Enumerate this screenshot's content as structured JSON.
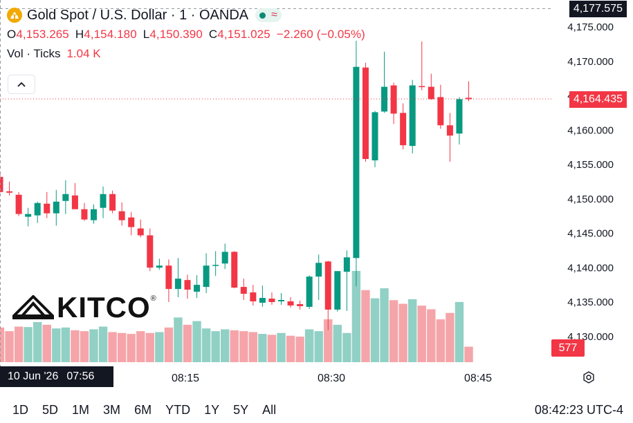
{
  "header": {
    "title": "Gold Spot / U.S. Dollar · 1 · OANDA",
    "icon": "gold-coin-icon",
    "status_icons": [
      "market-open-dot-icon",
      "realtime-wave-icon"
    ]
  },
  "ohlc": {
    "o_label": "O",
    "o_value": "4,153.265",
    "h_label": "H",
    "h_value": "4,154.180",
    "l_label": "L",
    "l_value": "4,150.390",
    "c_label": "C",
    "c_value": "4,151.025",
    "change": "−2.260 (−0.05%)"
  },
  "volume": {
    "label": "Vol · Ticks",
    "value": "1.04 K"
  },
  "watermark": {
    "logo_text": "KITCO",
    "mark": "®"
  },
  "price_scale": {
    "top_label": "4,177.575",
    "last_label": "4,164.435",
    "volume_label": "577"
  },
  "time_cursor": {
    "date": "10 Jun '26",
    "time": "07:56"
  },
  "ranges": [
    "1D",
    "5D",
    "1M",
    "3M",
    "6M",
    "YTD",
    "1Y",
    "5Y",
    "All"
  ],
  "clock": "08:42:23 UTC-4",
  "colors": {
    "up": "#089981",
    "down": "#f23645",
    "up_vol": "#91d0c5",
    "down_vol": "#f5a5a9",
    "gold": "#f2a900"
  },
  "chart_data": {
    "type": "candlestick",
    "symbol": "Gold Spot / U.S. Dollar",
    "interval": "1",
    "y_ticks": [
      4130,
      4135,
      4140,
      4145,
      4150,
      4155,
      4160,
      4165,
      4170,
      4175
    ],
    "y_tick_labels": [
      "4,130.000",
      "4,135.000",
      "4,140.000",
      "4,145.000",
      "4,150.000",
      "4,155.000",
      "4,160.000",
      "4,165.000",
      "4,170.000",
      "4,175.000"
    ],
    "x_tick_labels": [
      "08:15",
      "08:30",
      "08:45"
    ],
    "ylim": [
      4125.5,
      4178.5
    ],
    "last_price": 4164.435,
    "candles": [
      {
        "o": 4153.1,
        "h": 4153.6,
        "l": 4150.8,
        "c": 4150.9,
        "v": 380
      },
      {
        "o": 4151.0,
        "h": 4152.4,
        "l": 4150.4,
        "c": 4150.8,
        "v": 340
      },
      {
        "o": 4150.5,
        "h": 4150.9,
        "l": 4147.4,
        "c": 4147.7,
        "v": 390
      },
      {
        "o": 4147.3,
        "h": 4148.6,
        "l": 4145.9,
        "c": 4147.7,
        "v": 385
      },
      {
        "o": 4147.5,
        "h": 4149.5,
        "l": 4146.4,
        "c": 4149.3,
        "v": 440
      },
      {
        "o": 4149.2,
        "h": 4150.9,
        "l": 4147.1,
        "c": 4147.8,
        "v": 410
      },
      {
        "o": 4147.8,
        "h": 4151.2,
        "l": 4146.0,
        "c": 4149.5,
        "v": 370
      },
      {
        "o": 4149.6,
        "h": 4152.6,
        "l": 4147.7,
        "c": 4150.6,
        "v": 380
      },
      {
        "o": 4150.4,
        "h": 4152.2,
        "l": 4148.4,
        "c": 4148.4,
        "v": 350
      },
      {
        "o": 4148.4,
        "h": 4149.3,
        "l": 4146.7,
        "c": 4146.9,
        "v": 340
      },
      {
        "o": 4146.8,
        "h": 4149.1,
        "l": 4146.3,
        "c": 4148.4,
        "v": 360
      },
      {
        "o": 4148.6,
        "h": 4151.7,
        "l": 4147.1,
        "c": 4150.6,
        "v": 390
      },
      {
        "o": 4150.6,
        "h": 4151.1,
        "l": 4147.8,
        "c": 4148.2,
        "v": 330
      },
      {
        "o": 4148.1,
        "h": 4149.4,
        "l": 4146.0,
        "c": 4146.8,
        "v": 320
      },
      {
        "o": 4147.2,
        "h": 4148.0,
        "l": 4144.6,
        "c": 4145.8,
        "v": 310
      },
      {
        "o": 4145.6,
        "h": 4146.9,
        "l": 4144.3,
        "c": 4144.6,
        "v": 340
      },
      {
        "o": 4144.6,
        "h": 4145.6,
        "l": 4139.4,
        "c": 4139.9,
        "v": 320
      },
      {
        "o": 4139.9,
        "h": 4141.2,
        "l": 4139.6,
        "c": 4140.2,
        "v": 330
      },
      {
        "o": 4140.2,
        "h": 4141.1,
        "l": 4134.9,
        "c": 4136.8,
        "v": 380
      },
      {
        "o": 4136.8,
        "h": 4141.3,
        "l": 4135.6,
        "c": 4138.3,
        "v": 490
      },
      {
        "o": 4138.1,
        "h": 4138.9,
        "l": 4135.4,
        "c": 4136.7,
        "v": 410
      },
      {
        "o": 4136.4,
        "h": 4138.8,
        "l": 4135.5,
        "c": 4137.4,
        "v": 450
      },
      {
        "o": 4137.1,
        "h": 4142.0,
        "l": 4136.2,
        "c": 4140.2,
        "v": 370
      },
      {
        "o": 4140.3,
        "h": 4142.3,
        "l": 4138.7,
        "c": 4140.3,
        "v": 340
      },
      {
        "o": 4140.5,
        "h": 4143.4,
        "l": 4139.7,
        "c": 4142.2,
        "v": 360
      },
      {
        "o": 4142.2,
        "h": 4142.3,
        "l": 4136.9,
        "c": 4137.0,
        "v": 350
      },
      {
        "o": 4137.1,
        "h": 4138.3,
        "l": 4135.2,
        "c": 4136.1,
        "v": 340
      },
      {
        "o": 4136.3,
        "h": 4137.4,
        "l": 4134.4,
        "c": 4135.0,
        "v": 330
      },
      {
        "o": 4134.8,
        "h": 4137.3,
        "l": 4134.2,
        "c": 4135.5,
        "v": 310
      },
      {
        "o": 4135.4,
        "h": 4136.3,
        "l": 4134.5,
        "c": 4134.9,
        "v": 300
      },
      {
        "o": 4135.0,
        "h": 4136.2,
        "l": 4134.5,
        "c": 4135.2,
        "v": 320
      },
      {
        "o": 4135.0,
        "h": 4135.6,
        "l": 4134.1,
        "c": 4134.4,
        "v": 290
      },
      {
        "o": 4134.6,
        "h": 4135.1,
        "l": 4133.8,
        "c": 4134.3,
        "v": 280
      },
      {
        "o": 4134.2,
        "h": 4138.8,
        "l": 4133.9,
        "c": 4138.6,
        "v": 360
      },
      {
        "o": 4138.6,
        "h": 4141.8,
        "l": 4135.2,
        "c": 4140.6,
        "v": 340
      },
      {
        "o": 4140.8,
        "h": 4140.9,
        "l": 4130.8,
        "c": 4133.8,
        "v": 470
      },
      {
        "o": 4133.8,
        "h": 4139.4,
        "l": 4133.5,
        "c": 4139.4,
        "v": 410
      },
      {
        "o": 4139.3,
        "h": 4142.4,
        "l": 4133.6,
        "c": 4141.4,
        "v": 320
      },
      {
        "o": 4141.3,
        "h": 4172.9,
        "l": 4137.2,
        "c": 4169.1,
        "v": 1000
      },
      {
        "o": 4169.0,
        "h": 4169.7,
        "l": 4155.3,
        "c": 4155.7,
        "v": 790
      },
      {
        "o": 4155.5,
        "h": 4162.7,
        "l": 4154.5,
        "c": 4162.5,
        "v": 700
      },
      {
        "o": 4162.6,
        "h": 4171.3,
        "l": 4162.4,
        "c": 4166.2,
        "v": 810
      },
      {
        "o": 4166.4,
        "h": 4166.8,
        "l": 4160.8,
        "c": 4162.3,
        "v": 680
      },
      {
        "o": 4162.4,
        "h": 4163.8,
        "l": 4157.1,
        "c": 4157.7,
        "v": 640
      },
      {
        "o": 4157.6,
        "h": 4167.2,
        "l": 4156.5,
        "c": 4166.4,
        "v": 690
      },
      {
        "o": 4166.3,
        "h": 4172.8,
        "l": 4165.7,
        "c": 4166.2,
        "v": 620
      },
      {
        "o": 4166.2,
        "h": 4168.1,
        "l": 4164.3,
        "c": 4164.4,
        "v": 580
      },
      {
        "o": 4164.7,
        "h": 4166.5,
        "l": 4160.1,
        "c": 4160.6,
        "v": 470
      },
      {
        "o": 4160.6,
        "h": 4162.4,
        "l": 4155.3,
        "c": 4159.1,
        "v": 540
      },
      {
        "o": 4159.4,
        "h": 4164.7,
        "l": 4157.8,
        "c": 4164.4,
        "v": 660
      },
      {
        "o": 4164.6,
        "h": 4167.0,
        "l": 4164.1,
        "c": 4164.4,
        "v": 170
      }
    ]
  }
}
